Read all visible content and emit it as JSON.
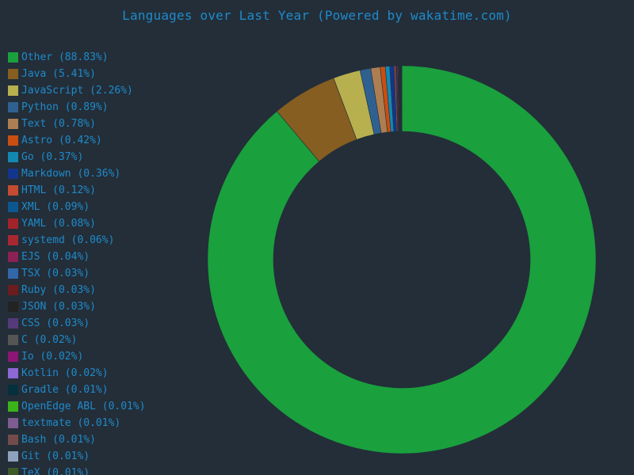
{
  "title": "Languages over Last Year (Powered by wakatime.com)",
  "chart_data": {
    "type": "pie",
    "donut": true,
    "legend_position": "left",
    "slices": [
      {
        "label": "Other (88.83%)",
        "value": 88.83,
        "color": "#1aa03d"
      },
      {
        "label": "Java (5.41%)",
        "value": 5.41,
        "color": "#865e21"
      },
      {
        "label": "JavaScript (2.26%)",
        "value": 2.26,
        "color": "#b8b04f"
      },
      {
        "label": "Python (0.89%)",
        "value": 0.89,
        "color": "#2f6190"
      },
      {
        "label": "Text (0.78%)",
        "value": 0.78,
        "color": "#ad7e52"
      },
      {
        "label": "Astro (0.42%)",
        "value": 0.42,
        "color": "#c94e11"
      },
      {
        "label": "Go (0.37%)",
        "value": 0.37,
        "color": "#1389b1"
      },
      {
        "label": "Markdown (0.36%)",
        "value": 0.36,
        "color": "#13368c"
      },
      {
        "label": "HTML (0.12%)",
        "value": 0.12,
        "color": "#c34c31"
      },
      {
        "label": "XML (0.09%)",
        "value": 0.09,
        "color": "#0d5791"
      },
      {
        "label": "YAML (0.08%)",
        "value": 0.08,
        "color": "#a3232a"
      },
      {
        "label": "systemd (0.06%)",
        "value": 0.06,
        "color": "#a82730"
      },
      {
        "label": "EJS (0.04%)",
        "value": 0.04,
        "color": "#8c2155"
      },
      {
        "label": "TSX (0.03%)",
        "value": 0.03,
        "color": "#3267a8"
      },
      {
        "label": "Ruby (0.03%)",
        "value": 0.03,
        "color": "#6b1c1c"
      },
      {
        "label": "JSON (0.03%)",
        "value": 0.03,
        "color": "#232323"
      },
      {
        "label": "CSS (0.03%)",
        "value": 0.03,
        "color": "#553a7b"
      },
      {
        "label": "C (0.02%)",
        "value": 0.02,
        "color": "#555555"
      },
      {
        "label": "Io (0.02%)",
        "value": 0.02,
        "color": "#8b1675"
      },
      {
        "label": "Kotlin (0.02%)",
        "value": 0.02,
        "color": "#8e68d4"
      },
      {
        "label": "Gradle (0.01%)",
        "value": 0.01,
        "color": "#05303d"
      },
      {
        "label": "OpenEdge ABL (0.01%)",
        "value": 0.01,
        "color": "#3bb21a"
      },
      {
        "label": "textmate (0.01%)",
        "value": 0.01,
        "color": "#7d5c91"
      },
      {
        "label": "Bash (0.01%)",
        "value": 0.01,
        "color": "#744b4c"
      },
      {
        "label": "Git (0.01%)",
        "value": 0.01,
        "color": "#8fa2bd"
      },
      {
        "label": "TeX (0.01%)",
        "value": 0.01,
        "color": "#3d5a27"
      }
    ]
  }
}
